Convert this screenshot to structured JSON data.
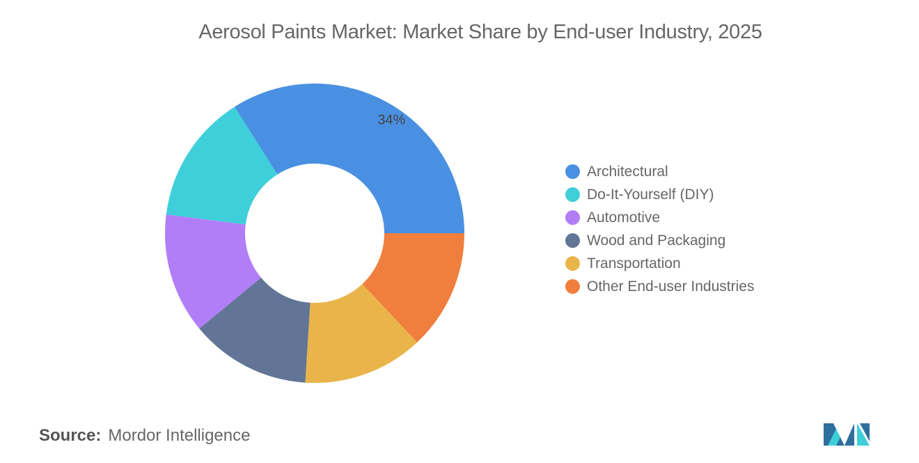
{
  "chart_data": {
    "type": "pie",
    "donut": true,
    "title": "Aerosol Paints Market: Market Share by End-user Industry, 2025",
    "categories": [
      "Architectural",
      "Do-It-Yourself (DIY)",
      "Automotive",
      "Wood and Packaging",
      "Transportation",
      "Other End-user Industries"
    ],
    "values": [
      34,
      14,
      13,
      13,
      13,
      13
    ],
    "unit": "%",
    "colors": [
      "#4a90e2",
      "#3ecfda",
      "#b17ef8",
      "#637596",
      "#e9b54b",
      "#f07f3d"
    ],
    "data_labels": [
      {
        "category": "Architectural",
        "text": "34%"
      }
    ],
    "legend_position": "right"
  },
  "source": {
    "label": "Source:",
    "value": "Mordor Intelligence"
  },
  "logo": "mordor-intelligence-logo"
}
